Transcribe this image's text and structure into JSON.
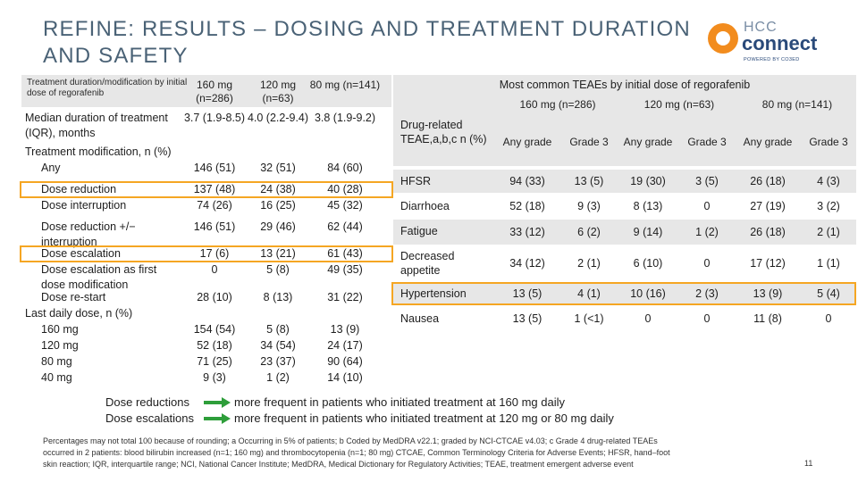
{
  "title": "REFINE: RESULTS – DOSING AND TREATMENT DURATION AND SAFETY",
  "logo": {
    "line1": "HCC",
    "line2": "connect",
    "tagline": "POWERED BY CO3ED"
  },
  "left_table": {
    "header": {
      "label": "Treatment duration/modification by initial dose of regorafenib",
      "cols": [
        "160 mg (n=286)",
        "120 mg (n=63)",
        "80 mg (n=141)"
      ]
    },
    "rows": [
      {
        "label": "Median duration of treatment (IQR), months",
        "v": [
          "3.7 (1.9-8.5)",
          "4.0 (2.2-9.4)",
          "3.8 (1.9-9.2)"
        ]
      },
      {
        "label": "Treatment modification, n (%)",
        "v": [
          "",
          "",
          ""
        ]
      },
      {
        "label": "Any",
        "v": [
          "146 (51)",
          "32 (51)",
          "84 (60)"
        ]
      },
      {
        "label": "Dose reduction",
        "v": [
          "137 (48)",
          "24 (38)",
          "40 (28)"
        ]
      },
      {
        "label": "Dose interruption",
        "v": [
          "74 (26)",
          "16 (25)",
          "45 (32)"
        ]
      },
      {
        "label": "Dose reduction +/− interruption",
        "v": [
          "146 (51)",
          "29 (46)",
          "62 (44)"
        ]
      },
      {
        "label": "Dose escalation",
        "v": [
          "17 (6)",
          "13 (21)",
          "61 (43)"
        ]
      },
      {
        "label": "Dose escalation as first dose modification",
        "v": [
          "0",
          "5 (8)",
          "49 (35)"
        ]
      },
      {
        "label": "Dose re-start",
        "v": [
          "28 (10)",
          "8 (13)",
          "31 (22)"
        ]
      },
      {
        "label": "Last daily dose, n (%)",
        "v": [
          "",
          "",
          ""
        ]
      },
      {
        "label": "160 mg",
        "v": [
          "154 (54)",
          "5 (8)",
          "13 (9)"
        ]
      },
      {
        "label": "120 mg",
        "v": [
          "52 (18)",
          "34 (54)",
          "24 (17)"
        ]
      },
      {
        "label": "80 mg",
        "v": [
          "71 (25)",
          "23 (37)",
          "90 (64)"
        ]
      },
      {
        "label": "40 mg",
        "v": [
          "9 (3)",
          "1 (2)",
          "14 (10)"
        ]
      }
    ]
  },
  "right_table": {
    "title": "Most common TEAEs by initial dose of regorafenib",
    "row_header": "Drug-related TEAE,a,b,c n (%)",
    "doses": [
      "160 mg (n=286)",
      "120 mg (n=63)",
      "80 mg (n=141)"
    ],
    "subcols": [
      "Any grade",
      "Grade 3",
      "Any grade",
      "Grade 3",
      "Any grade",
      "Grade 3"
    ],
    "rows": [
      {
        "label": "HFSR",
        "v": [
          "94 (33)",
          "13 (5)",
          "19 (30)",
          "3 (5)",
          "26 (18)",
          "4 (3)"
        ]
      },
      {
        "label": "Diarrhoea",
        "v": [
          "52 (18)",
          "9 (3)",
          "8 (13)",
          "0",
          "27 (19)",
          "3 (2)"
        ]
      },
      {
        "label": "Fatigue",
        "v": [
          "33 (12)",
          "6 (2)",
          "9 (14)",
          "1 (2)",
          "26 (18)",
          "2 (1)"
        ]
      },
      {
        "label": "Decreased appetite",
        "v": [
          "34 (12)",
          "2 (1)",
          "6 (10)",
          "0",
          "17 (12)",
          "1 (1)"
        ]
      },
      {
        "label": "Hypertension",
        "v": [
          "13 (5)",
          "4 (1)",
          "10 (16)",
          "2 (3)",
          "13 (9)",
          "5 (4)"
        ]
      },
      {
        "label": "Nausea",
        "v": [
          "13 (5)",
          "1 (<1)",
          "0",
          "0",
          "11 (8)",
          "0"
        ]
      }
    ]
  },
  "summary": [
    {
      "label": "Dose reductions",
      "text": "more frequent in patients who initiated treatment at 160 mg daily"
    },
    {
      "label": "Dose escalations",
      "text": "more frequent in patients who initiated treatment at 120 mg or 80 mg daily"
    }
  ],
  "footnote": "Percentages may not total 100 because of rounding; a Occurring in 5% of patients; b Coded by MedDRA v22.1; graded by NCI-CTCAE v4.03; c Grade 4 drug-related TEAEs occurred in 2 patients: blood bilirubin increased (n=1; 160 mg) and thrombocytopenia (n=1; 80 mg) CTCAE, Common Terminology Criteria for Adverse Events; HFSR, hand–foot skin reaction; IQR, interquartile range; NCI, National Cancer Institute; MedDRA, Medical Dictionary for Regulatory Activities; TEAE, treatment emergent adverse event",
  "page_number": "11",
  "colors": {
    "title": "#4a6276",
    "highlight": "#f5a623",
    "shade": "#e7e7e7",
    "logo_orange": "#f28c1e",
    "logo_blue": "#2a4a7a",
    "arrow_green": "#2e9e3a"
  }
}
